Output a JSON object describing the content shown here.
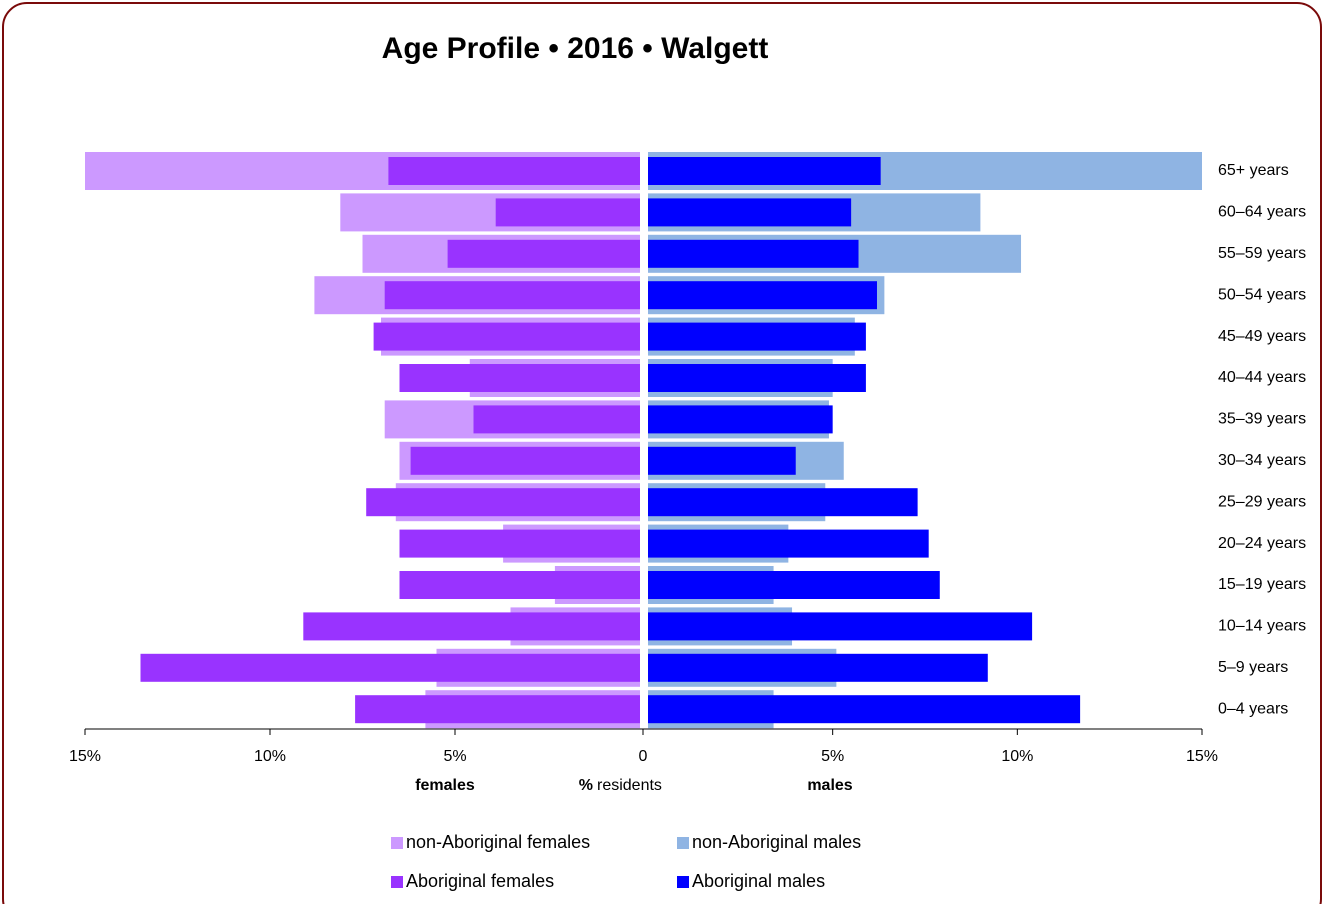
{
  "chart_data": {
    "type": "pyramid",
    "title": "Age Profile  •  2016  •  Walgett",
    "categories": [
      "65+ years",
      "60–64 years",
      "55–59 years",
      "50–54 years",
      "45–49 years",
      "40–44 years",
      "35–39 years",
      "30–34 years",
      "25–29 years",
      "20–24 years",
      "15–19 years",
      "10–14 years",
      "5–9 years",
      "0–4 years"
    ],
    "series": [
      {
        "name": "non-Aboriginal females",
        "side": "left",
        "width": "wide",
        "color": "#cc99ff",
        "values": [
          15.0,
          8.1,
          7.5,
          8.8,
          7.0,
          4.6,
          6.9,
          6.5,
          6.6,
          3.7,
          2.3,
          3.5,
          5.5,
          5.8
        ]
      },
      {
        "name": "non-Aboriginal males",
        "side": "right",
        "width": "wide",
        "color": "#8fb4e3",
        "values": [
          15.0,
          9.0,
          10.1,
          6.4,
          5.6,
          5.0,
          4.9,
          5.3,
          4.8,
          3.8,
          3.4,
          3.9,
          5.1,
          3.4
        ]
      },
      {
        "name": "Aboriginal females",
        "side": "left",
        "width": "narrow",
        "color": "#9933ff",
        "values": [
          6.8,
          3.9,
          5.2,
          6.9,
          7.2,
          6.5,
          4.5,
          6.2,
          7.4,
          6.5,
          6.5,
          9.1,
          13.5,
          7.7
        ]
      },
      {
        "name": "Aboriginal males",
        "side": "right",
        "width": "narrow",
        "color": "#0000ff",
        "values": [
          6.3,
          5.5,
          5.7,
          6.2,
          5.9,
          5.9,
          5.0,
          4.0,
          7.3,
          7.6,
          7.9,
          10.4,
          9.2,
          11.7
        ]
      }
    ],
    "xlim": [
      0,
      15
    ],
    "left_label": "females",
    "right_label": "males",
    "xlabel_symbol": "%",
    "xlabel": "residents",
    "left_xticks": [
      {
        "value": 15,
        "label": "15%"
      },
      {
        "value": 10,
        "label": "10%"
      },
      {
        "value": 5,
        "label": "5%"
      },
      0
    ],
    "right_xticks": [
      {
        "value": 5,
        "label": "5%"
      },
      {
        "value": 10,
        "label": "10%"
      },
      {
        "value": 15,
        "label": "15%"
      }
    ],
    "left_color": "#dd1111",
    "right_color": "#1111dd"
  }
}
